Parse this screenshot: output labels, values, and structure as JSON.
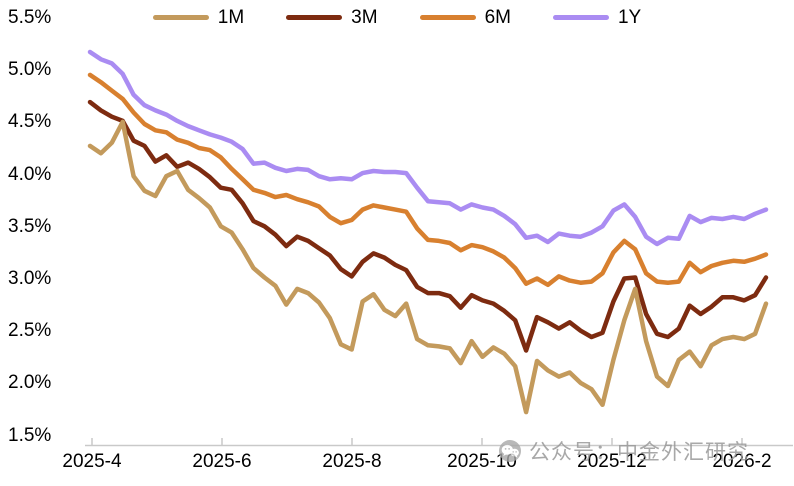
{
  "watermark": {
    "text": "公众号：中金外汇研究",
    "icon": "wechat-official-account-icon"
  },
  "colors": {
    "series_1m": "#C39A5C",
    "series_3m": "#7D2B10",
    "series_6m": "#D8802F",
    "series_1y": "#AA8CF2",
    "axis": "#C9C9C9",
    "text": "#000000",
    "watermark": "#999999"
  },
  "chart_data": {
    "type": "line",
    "title": "",
    "xlabel": "",
    "ylabel": "",
    "grid": false,
    "legend_position": "top",
    "ylim": [
      1.5,
      5.5
    ],
    "yticks": [
      "5.5%",
      "5.0%",
      "4.5%",
      "4.0%",
      "3.5%",
      "3.0%",
      "2.5%",
      "2.0%",
      "1.5%"
    ],
    "xticks": [
      "2025-4",
      "2025-6",
      "2025-8",
      "2025-10",
      "2025-12",
      "2026-2"
    ],
    "x": [
      "2025-03-31",
      "2025-04-05",
      "2025-04-10",
      "2025-04-15",
      "2025-04-20",
      "2025-04-25",
      "2025-04-30",
      "2025-05-05",
      "2025-05-10",
      "2025-05-15",
      "2025-05-20",
      "2025-05-25",
      "2025-05-30",
      "2025-06-04",
      "2025-06-09",
      "2025-06-14",
      "2025-06-19",
      "2025-06-24",
      "2025-06-29",
      "2025-07-04",
      "2025-07-09",
      "2025-07-14",
      "2025-07-19",
      "2025-07-24",
      "2025-07-29",
      "2025-08-03",
      "2025-08-08",
      "2025-08-13",
      "2025-08-18",
      "2025-08-23",
      "2025-08-28",
      "2025-09-02",
      "2025-09-07",
      "2025-09-12",
      "2025-09-17",
      "2025-09-22",
      "2025-09-27",
      "2025-10-02",
      "2025-10-07",
      "2025-10-12",
      "2025-10-17",
      "2025-10-22",
      "2025-10-27",
      "2025-11-01",
      "2025-11-06",
      "2025-11-11",
      "2025-11-16",
      "2025-11-21",
      "2025-11-26",
      "2025-12-01",
      "2025-12-06",
      "2025-12-11",
      "2025-12-16",
      "2025-12-21",
      "2025-12-26",
      "2025-12-31",
      "2026-01-05",
      "2026-01-10",
      "2026-01-15",
      "2026-01-20",
      "2026-01-25",
      "2026-01-30",
      "2026-02-04"
    ],
    "series": [
      {
        "name": "1M",
        "color": "#C39A5C",
        "values": [
          4.27,
          4.2,
          4.3,
          4.5,
          3.98,
          3.84,
          3.79,
          3.98,
          4.03,
          3.85,
          3.77,
          3.68,
          3.5,
          3.44,
          3.28,
          3.1,
          3.01,
          2.93,
          2.75,
          2.9,
          2.86,
          2.77,
          2.62,
          2.37,
          2.32,
          2.78,
          2.85,
          2.7,
          2.64,
          2.76,
          2.42,
          2.36,
          2.35,
          2.33,
          2.19,
          2.4,
          2.25,
          2.34,
          2.28,
          2.16,
          1.72,
          2.21,
          2.12,
          2.06,
          2.1,
          2.0,
          1.94,
          1.79,
          2.22,
          2.6,
          2.9,
          2.4,
          2.06,
          1.97,
          2.22,
          2.3,
          2.16,
          2.36,
          2.42,
          2.44,
          2.42,
          2.47,
          2.76
        ]
      },
      {
        "name": "3M",
        "color": "#7D2B10",
        "values": [
          4.69,
          4.61,
          4.55,
          4.51,
          4.32,
          4.27,
          4.12,
          4.18,
          4.07,
          4.11,
          4.05,
          3.97,
          3.87,
          3.85,
          3.72,
          3.55,
          3.5,
          3.42,
          3.31,
          3.4,
          3.36,
          3.29,
          3.22,
          3.09,
          3.02,
          3.16,
          3.24,
          3.2,
          3.13,
          3.08,
          2.92,
          2.86,
          2.86,
          2.83,
          2.72,
          2.84,
          2.79,
          2.76,
          2.69,
          2.6,
          2.31,
          2.63,
          2.58,
          2.52,
          2.58,
          2.5,
          2.44,
          2.48,
          2.78,
          3.0,
          3.01,
          2.66,
          2.47,
          2.44,
          2.52,
          2.74,
          2.66,
          2.73,
          2.82,
          2.82,
          2.79,
          2.84,
          3.01
        ]
      },
      {
        "name": "6M",
        "color": "#D8802F",
        "values": [
          4.95,
          4.88,
          4.8,
          4.72,
          4.59,
          4.48,
          4.42,
          4.4,
          4.33,
          4.3,
          4.25,
          4.23,
          4.16,
          4.05,
          3.95,
          3.85,
          3.82,
          3.78,
          3.8,
          3.76,
          3.73,
          3.69,
          3.59,
          3.53,
          3.56,
          3.66,
          3.7,
          3.68,
          3.66,
          3.64,
          3.48,
          3.37,
          3.36,
          3.34,
          3.27,
          3.32,
          3.3,
          3.26,
          3.2,
          3.1,
          2.95,
          3.0,
          2.94,
          3.02,
          2.98,
          2.96,
          2.97,
          3.05,
          3.25,
          3.36,
          3.28,
          3.05,
          2.97,
          2.96,
          2.97,
          3.15,
          3.06,
          3.12,
          3.15,
          3.17,
          3.16,
          3.19,
          3.23
        ]
      },
      {
        "name": "1Y",
        "color": "#AA8CF2",
        "values": [
          5.17,
          5.1,
          5.06,
          4.96,
          4.76,
          4.66,
          4.61,
          4.57,
          4.51,
          4.46,
          4.42,
          4.38,
          4.35,
          4.31,
          4.24,
          4.1,
          4.11,
          4.06,
          4.03,
          4.05,
          4.04,
          3.98,
          3.95,
          3.96,
          3.95,
          4.01,
          4.03,
          4.02,
          4.02,
          4.01,
          3.87,
          3.74,
          3.73,
          3.72,
          3.66,
          3.71,
          3.68,
          3.66,
          3.6,
          3.52,
          3.39,
          3.41,
          3.35,
          3.43,
          3.41,
          3.4,
          3.44,
          3.5,
          3.65,
          3.71,
          3.59,
          3.4,
          3.33,
          3.39,
          3.38,
          3.6,
          3.54,
          3.58,
          3.57,
          3.59,
          3.57,
          3.62,
          3.66
        ]
      }
    ]
  }
}
